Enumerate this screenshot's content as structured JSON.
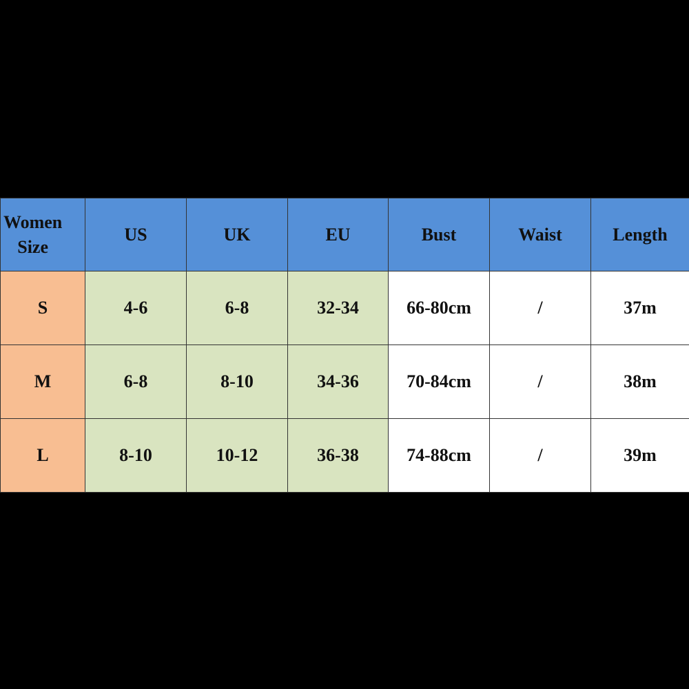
{
  "colors": {
    "header": "#5590d8",
    "size_col": "#f8be92",
    "conversion_cols": "#d9e4c0",
    "measure_cols": "#ffffff",
    "background": "#000000"
  },
  "table": {
    "headers": [
      "Women Size",
      "US",
      "UK",
      "EU",
      "Bust",
      "Waist",
      "Length"
    ],
    "rows": [
      [
        "S",
        "4-6",
        "6-8",
        "32-34",
        "66-80cm",
        "/",
        "37m"
      ],
      [
        "M",
        "6-8",
        "8-10",
        "34-36",
        "70-84cm",
        "/",
        "38m"
      ],
      [
        "L",
        "8-10",
        "10-12",
        "36-38",
        "74-88cm",
        "/",
        "39m"
      ]
    ]
  }
}
